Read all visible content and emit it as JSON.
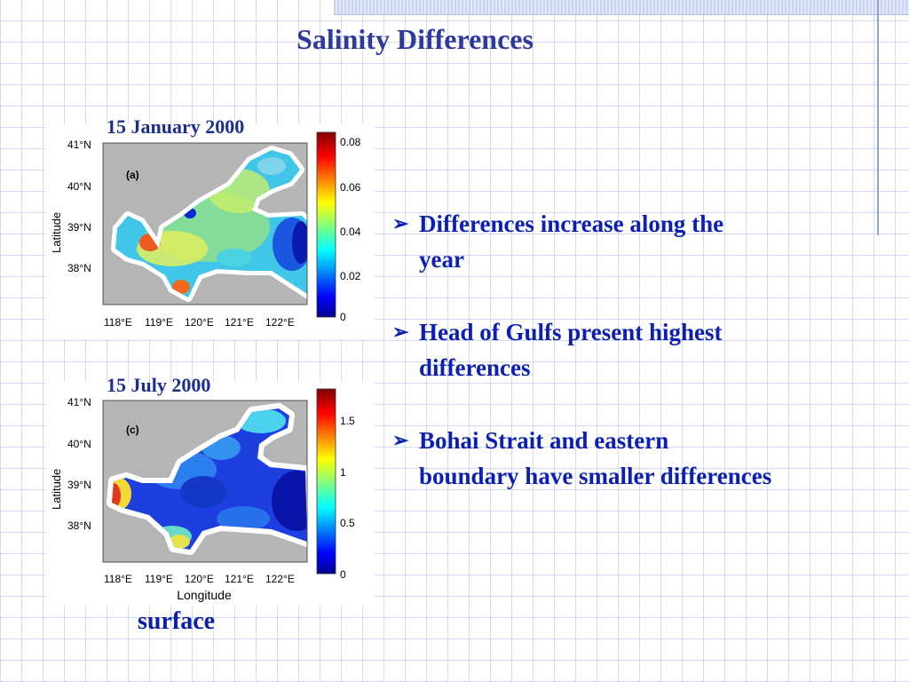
{
  "slide": {
    "title": "Salinity Differences",
    "surface_label": "surface"
  },
  "panels": [
    {
      "heading": "15 January 2000",
      "panel_label": "(a)",
      "y_axis_label": "Latitude",
      "lat_ticks": [
        "41°N",
        "40°N",
        "39°N",
        "38°N"
      ],
      "lon_ticks": [
        "118°E",
        "119°E",
        "120°E",
        "121°E",
        "122°E"
      ],
      "colorbar_ticks": [
        "0.08",
        "0.06",
        "0.04",
        "0.02",
        "0"
      ],
      "colorbar_range": [
        0,
        0.09
      ]
    },
    {
      "heading": "15 July 2000",
      "panel_label": "(c)",
      "y_axis_label": "Latitude",
      "x_axis_label": "Longitude",
      "lat_ticks": [
        "41°N",
        "40°N",
        "39°N",
        "38°N"
      ],
      "lon_ticks": [
        "118°E",
        "119°E",
        "120°E",
        "121°E",
        "122°E"
      ],
      "colorbar_ticks": [
        "1.5",
        "1",
        "0.5",
        "0"
      ],
      "colorbar_range": [
        0,
        1.8
      ]
    }
  ],
  "bullets": [
    {
      "marker": "➢",
      "text": "Differences increase along the year"
    },
    {
      "marker": "➢",
      "text": "Head of Gulfs present highest differences"
    },
    {
      "marker": "➢",
      "text": "Bohai Strait and eastern boundary have smaller differences"
    }
  ],
  "colors": {
    "title": "#2e3a9b",
    "bullet_text": "#0b1fb3",
    "land": "#b5b5b5",
    "coast": "#ffffff"
  }
}
